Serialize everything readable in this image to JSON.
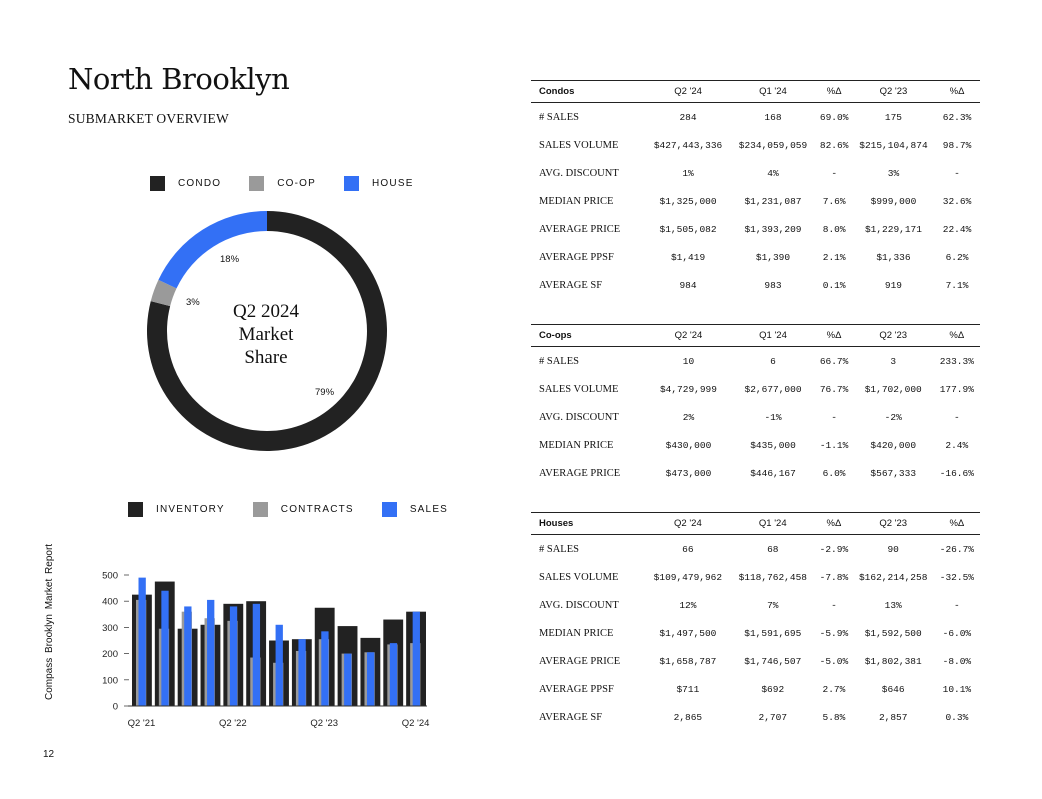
{
  "page": {
    "title": "North Brooklyn",
    "subtitle": "SUBMARKET OVERVIEW",
    "side_text": "Compass   Brooklyn Market Report",
    "page_number": "12"
  },
  "donut": {
    "center_lines": [
      "Q2 2024",
      "Market",
      "Share"
    ],
    "legend": [
      {
        "label": "CONDO",
        "color": "#222222"
      },
      {
        "label": "CO-OP",
        "color": "#9a9a9a"
      },
      {
        "label": "HOUSE",
        "color": "#3370f5"
      }
    ],
    "slices": [
      {
        "name": "CONDO",
        "value": 79,
        "label": "79%",
        "color": "#222222"
      },
      {
        "name": "CO-OP",
        "value": 3,
        "label": "3%",
        "color": "#9a9a9a"
      },
      {
        "name": "HOUSE",
        "value": 18,
        "label": "18%",
        "color": "#3370f5"
      }
    ]
  },
  "chart_data": {
    "type": "bar",
    "categories": [
      "Q2 '21",
      "Q3 '21",
      "Q4 '21",
      "Q1 '22",
      "Q2 '22",
      "Q3 '22",
      "Q4 '22",
      "Q1 '23",
      "Q2 '23",
      "Q3 '23",
      "Q4 '23",
      "Q1 '24",
      "Q2 '24"
    ],
    "x_tick_labels": [
      "Q2 '21",
      "Q2 '22",
      "Q2 '23",
      "Q2 '24"
    ],
    "y_ticks": [
      0,
      100,
      200,
      300,
      400,
      500
    ],
    "ylim": [
      0,
      500
    ],
    "series": [
      {
        "name": "INVENTORY",
        "color": "#222222",
        "values": [
          425,
          475,
          295,
          310,
          390,
          400,
          250,
          255,
          375,
          305,
          260,
          330,
          360
        ]
      },
      {
        "name": "CONTRACTS",
        "color": "#9a9a9a",
        "values": [
          405,
          295,
          360,
          335,
          325,
          185,
          165,
          210,
          255,
          200,
          205,
          235,
          240
        ]
      },
      {
        "name": "SALES",
        "color": "#3370f5",
        "values": [
          490,
          440,
          380,
          405,
          380,
          390,
          310,
          255,
          285,
          200,
          205,
          240,
          360
        ]
      }
    ]
  },
  "tables": [
    {
      "title": "Condos",
      "headers": [
        "Q2 '24",
        "Q1 '24",
        "%Δ",
        "Q2 '23",
        "%Δ"
      ],
      "rows": [
        [
          "# SALES",
          "284",
          "168",
          "69.0%",
          "175",
          "62.3%"
        ],
        [
          "SALES VOLUME",
          "$427,443,336",
          "$234,059,059",
          "82.6%",
          "$215,104,874",
          "98.7%"
        ],
        [
          "AVG. DISCOUNT",
          "1%",
          "4%",
          "-",
          "3%",
          "-"
        ],
        [
          "MEDIAN PRICE",
          "$1,325,000",
          "$1,231,087",
          "7.6%",
          "$999,000",
          "32.6%"
        ],
        [
          "AVERAGE PRICE",
          "$1,505,082",
          "$1,393,209",
          "8.0%",
          "$1,229,171",
          "22.4%"
        ],
        [
          "AVERAGE PPSF",
          "$1,419",
          "$1,390",
          "2.1%",
          "$1,336",
          "6.2%"
        ],
        [
          "AVERAGE SF",
          "984",
          "983",
          "0.1%",
          "919",
          "7.1%"
        ]
      ]
    },
    {
      "title": "Co-ops",
      "headers": [
        "Q2 '24",
        "Q1 '24",
        "%Δ",
        "Q2 '23",
        "%Δ"
      ],
      "rows": [
        [
          "# SALES",
          "10",
          "6",
          "66.7%",
          "3",
          "233.3%"
        ],
        [
          "SALES VOLUME",
          "$4,729,999",
          "$2,677,000",
          "76.7%",
          "$1,702,000",
          "177.9%"
        ],
        [
          "AVG. DISCOUNT",
          "2%",
          "-1%",
          "-",
          "-2%",
          "-"
        ],
        [
          "MEDIAN PRICE",
          "$430,000",
          "$435,000",
          "-1.1%",
          "$420,000",
          "2.4%"
        ],
        [
          "AVERAGE PRICE",
          "$473,000",
          "$446,167",
          "6.0%",
          "$567,333",
          "-16.6%"
        ]
      ]
    },
    {
      "title": "Houses",
      "headers": [
        "Q2 '24",
        "Q1 '24",
        "%Δ",
        "Q2 '23",
        "%Δ"
      ],
      "rows": [
        [
          "# SALES",
          "66",
          "68",
          "-2.9%",
          "90",
          "-26.7%"
        ],
        [
          "SALES VOLUME",
          "$109,479,962",
          "$118,762,458",
          "-7.8%",
          "$162,214,258",
          "-32.5%"
        ],
        [
          "AVG. DISCOUNT",
          "12%",
          "7%",
          "-",
          "13%",
          "-"
        ],
        [
          "MEDIAN PRICE",
          "$1,497,500",
          "$1,591,695",
          "-5.9%",
          "$1,592,500",
          "-6.0%"
        ],
        [
          "AVERAGE PRICE",
          "$1,658,787",
          "$1,746,507",
          "-5.0%",
          "$1,802,381",
          "-8.0%"
        ],
        [
          "AVERAGE PPSF",
          "$711",
          "$692",
          "2.7%",
          "$646",
          "10.1%"
        ],
        [
          "AVERAGE SF",
          "2,865",
          "2,707",
          "5.8%",
          "2,857",
          "0.3%"
        ]
      ]
    }
  ]
}
